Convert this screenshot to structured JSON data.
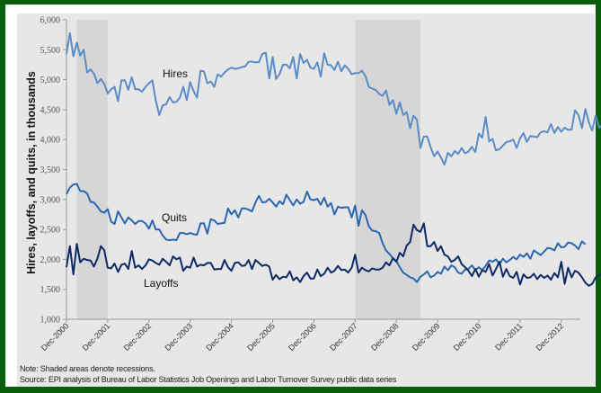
{
  "notes": {
    "note": "Note: Shaded areas denote recessions.",
    "source": "Source: EPI analysis of  Bureau of Labor Statistics  Job Openings and Labor Turnover Survey public data series"
  },
  "colors": {
    "hires": "#5b8cc6",
    "quits": "#2a67b1",
    "layoffs": "#0d2a66",
    "recession": "#d6d6d6",
    "plot_bg": "#e7e7e7",
    "border": "#0b5e0b"
  },
  "chart_data": {
    "type": "line",
    "title": "",
    "xlabel": "",
    "ylabel": "Hires, layoffs, and quits, in thousands",
    "ylim": [
      1000,
      6000
    ],
    "yticks": [
      1000,
      1500,
      2000,
      2500,
      3000,
      3500,
      4000,
      4500,
      5000,
      5500,
      6000
    ],
    "ytick_labels": [
      "1,000",
      "1,500",
      "2,000",
      "2,500",
      "3,000",
      "3,500",
      "4,000",
      "4,500",
      "5,000",
      "5,500",
      "6,000"
    ],
    "xtick_labels": [
      "Dec-2000",
      "Dec-2001",
      "Dec-2002",
      "Dec-2003",
      "Dec-2004",
      "Dec-2005",
      "Dec-2006",
      "Dec-2007",
      "Dec-2008",
      "Dec-2009",
      "Dec-2010",
      "Dec-2011",
      "Dec-2012"
    ],
    "x_start": "Dec-2000",
    "x_frequency": "monthly",
    "grid": false,
    "legend": "inline labels",
    "recessions": [
      {
        "start": "Mar-2001",
        "end": "Nov-2001"
      },
      {
        "start": "Dec-2007",
        "end": "Jun-2009"
      }
    ],
    "series": [
      {
        "name": "Hires",
        "label_position": "above line near Dec-2003",
        "values": [
          5430,
          5780,
          5390,
          5620,
          5400,
          5500,
          5120,
          5170,
          5100,
          4940,
          5010,
          4930,
          4770,
          4840,
          4880,
          4640,
          4990,
          4990,
          4830,
          5040,
          4840,
          4840,
          4800,
          4880,
          4940,
          4990,
          4650,
          4410,
          4570,
          4590,
          4710,
          4620,
          4630,
          4700,
          4880,
          4660,
          4960,
          4810,
          4700,
          5150,
          5140,
          4940,
          4970,
          4880,
          5090,
          5050,
          5120,
          5170,
          5200,
          5180,
          5190,
          5210,
          5220,
          5300,
          5300,
          5290,
          5290,
          5430,
          5450,
          5020,
          5380,
          5010,
          5090,
          5250,
          5250,
          5190,
          5380,
          5020,
          5430,
          5280,
          5330,
          5200,
          5180,
          5290,
          5050,
          5440,
          5250,
          5240,
          5160,
          5300,
          5140,
          5240,
          5180,
          5090,
          5110,
          5110,
          5150,
          5060,
          4880,
          4850,
          4830,
          4760,
          4730,
          4820,
          4580,
          4660,
          4430,
          4620,
          4410,
          4460,
          4190,
          4400,
          4330,
          3860,
          4050,
          4050,
          3870,
          3720,
          3800,
          3700,
          3580,
          3780,
          3720,
          3810,
          3760,
          3860,
          3770,
          3800,
          3880,
          3790,
          4100,
          4030,
          4380,
          3970,
          4010,
          3820,
          3840,
          3900,
          3960,
          3970,
          4000,
          3860,
          4020,
          4110,
          3960,
          4060,
          4050,
          4040,
          4120,
          4140,
          4120,
          4260,
          4110,
          4210,
          4130,
          4200,
          4160,
          4170,
          4490,
          4410,
          4190,
          4510,
          4290,
          4150,
          4400,
          4200,
          4240,
          4380,
          4180,
          4290,
          4430,
          4230,
          4410,
          4440
        ],
        "note": "Values approximate, read from chart (monthly, Dec-2000 to Jun-2013)"
      },
      {
        "name": "Quits",
        "label_position": "above line near Dec-2002",
        "values": [
          3090,
          3200,
          3250,
          3260,
          3140,
          3140,
          3100,
          2960,
          2950,
          2880,
          2800,
          2780,
          2840,
          2630,
          2590,
          2800,
          2700,
          2600,
          2700,
          2650,
          2590,
          2640,
          2640,
          2600,
          2510,
          2650,
          2500,
          2500,
          2400,
          2330,
          2320,
          2330,
          2320,
          2440,
          2440,
          2420,
          2440,
          2420,
          2410,
          2600,
          2600,
          2430,
          2670,
          2650,
          2590,
          2600,
          2610,
          2850,
          2750,
          2820,
          2700,
          2850,
          2850,
          2830,
          2800,
          2950,
          3060,
          2950,
          2960,
          3010,
          2950,
          2880,
          2970,
          2920,
          3080,
          2990,
          2900,
          3000,
          2930,
          2960,
          3130,
          3000,
          2990,
          3010,
          2910,
          3030,
          2880,
          2940,
          2750,
          2880,
          2860,
          2870,
          2870,
          2700,
          2900,
          2560,
          2820,
          2740,
          2550,
          2480,
          2470,
          2440,
          2270,
          2150,
          2090,
          2020,
          1970,
          1870,
          1780,
          1740,
          1700,
          1680,
          1620,
          1710,
          1750,
          1800,
          1700,
          1730,
          1790,
          1760,
          1880,
          1820,
          1900,
          1870,
          1780,
          1760,
          1830,
          1840,
          1900,
          1820,
          1870,
          1820,
          1890,
          1980,
          1960,
          2000,
          1920,
          2010,
          1950,
          1990,
          2040,
          2000,
          2080,
          2040,
          2100,
          2010,
          2150,
          2110,
          2070,
          2130,
          2190,
          2180,
          2150,
          2270,
          2200,
          2210,
          2280,
          2270,
          2230,
          2170,
          2300,
          2250
        ],
        "note": "Values approximate, read from chart (monthly, Dec-2000 to May-2013)"
      },
      {
        "name": "Layoffs",
        "label_position": "below line near Dec-2002",
        "values": [
          1870,
          2220,
          1750,
          2260,
          1950,
          2010,
          1990,
          1980,
          1880,
          2010,
          2220,
          2150,
          1860,
          1850,
          1930,
          1790,
          1910,
          1930,
          1840,
          2140,
          1860,
          1900,
          1840,
          1900,
          2000,
          1980,
          1940,
          1910,
          2010,
          1960,
          1900,
          2050,
          2000,
          2030,
          1810,
          1880,
          1860,
          2030,
          1880,
          1910,
          1900,
          1940,
          1940,
          1830,
          1840,
          1840,
          1990,
          1870,
          1810,
          1940,
          1950,
          1890,
          1900,
          1990,
          1840,
          1990,
          1940,
          1890,
          1910,
          1880,
          1660,
          1740,
          1670,
          1710,
          1700,
          1800,
          1650,
          1700,
          1620,
          1720,
          1780,
          1680,
          1680,
          1830,
          1720,
          1760,
          1860,
          1780,
          1810,
          1890,
          1820,
          1830,
          1780,
          1860,
          2080,
          1780,
          1860,
          1820,
          1800,
          1850,
          1830,
          1830,
          1860,
          1950,
          1900,
          2020,
          1960,
          2110,
          2050,
          2230,
          2290,
          2580,
          2490,
          2460,
          2600,
          2220,
          2220,
          2290,
          2140,
          2220,
          2080,
          2050,
          1960,
          1990,
          2050,
          1920,
          1870,
          1810,
          1720,
          1840,
          1710,
          1820,
          1790,
          1920,
          1730,
          1840,
          1960,
          1710,
          1840,
          1720,
          1690,
          1790,
          1580,
          1750,
          1690,
          1700,
          1760,
          1670,
          1740,
          1690,
          1730,
          1660,
          1770,
          1700,
          1960,
          1590,
          1860,
          1700,
          1810,
          1780,
          1700,
          1610,
          1560,
          1590,
          1700,
          1740,
          1750
        ],
        "note": "Values approximate, read from chart (monthly, Dec-2000 to Jul-2013)"
      }
    ]
  }
}
